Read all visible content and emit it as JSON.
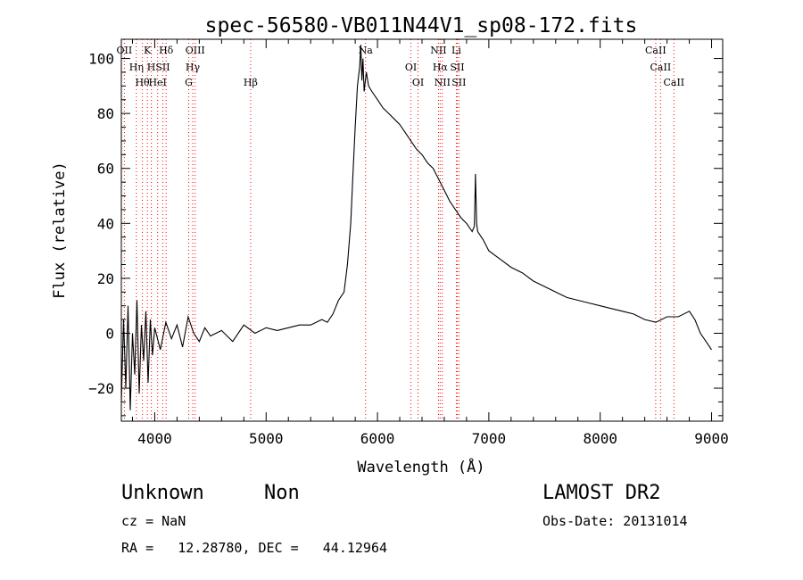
{
  "chart_data": {
    "type": "line",
    "title": "spec-56580-VB011N44V1_sp08-172.fits",
    "xlabel": "Wavelength (Å)",
    "ylabel": "Flux (relative)",
    "xlim": [
      3700,
      9100
    ],
    "ylim": [
      -32,
      107
    ],
    "x_ticks": [
      4000,
      5000,
      6000,
      7000,
      8000,
      9000
    ],
    "y_ticks": [
      -20,
      0,
      20,
      40,
      60,
      80,
      100
    ],
    "x_tick_labels": [
      "4000",
      "5000",
      "6000",
      "7000",
      "8000",
      "9000"
    ],
    "y_tick_labels": [
      "−20",
      "0",
      "20",
      "40",
      "60",
      "80",
      "100"
    ],
    "grid": false,
    "line_color": "#000000",
    "marker_line_color": "#ff0000",
    "series": [
      {
        "x": [
          3700,
          3720,
          3740,
          3760,
          3780,
          3800,
          3820,
          3840,
          3860,
          3880,
          3900,
          3920,
          3940,
          3960,
          3980,
          4000,
          4050,
          4100,
          4150,
          4200,
          4250,
          4300,
          4350,
          4400,
          4450,
          4500,
          4600,
          4700,
          4800,
          4900,
          5000,
          5100,
          5200,
          5300,
          5400,
          5500,
          5550,
          5600,
          5650,
          5700,
          5730,
          5760,
          5780,
          5800,
          5820,
          5840,
          5850,
          5860,
          5870,
          5880,
          5900,
          5920,
          5950,
          6000,
          6050,
          6100,
          6150,
          6200,
          6250,
          6300,
          6350,
          6400,
          6450,
          6500,
          6550,
          6600,
          6650,
          6700,
          6750,
          6800,
          6850,
          6870,
          6880,
          6890,
          6900,
          6950,
          7000,
          7100,
          7200,
          7300,
          7400,
          7500,
          7600,
          7700,
          7800,
          7900,
          8000,
          8100,
          8200,
          8300,
          8400,
          8500,
          8600,
          8700,
          8800,
          8850,
          8880,
          8900,
          8950,
          9000
        ],
        "y": [
          -25,
          5,
          -20,
          10,
          -28,
          0,
          -15,
          12,
          -22,
          3,
          -10,
          8,
          -18,
          5,
          -8,
          2,
          -6,
          4,
          -2,
          3,
          -5,
          6,
          0,
          -3,
          2,
          -1,
          1,
          -3,
          3,
          0,
          2,
          1,
          2,
          3,
          3,
          5,
          4,
          7,
          12,
          15,
          25,
          40,
          58,
          75,
          90,
          97,
          105,
          92,
          100,
          88,
          95,
          90,
          88,
          85,
          82,
          80,
          78,
          76,
          73,
          70,
          67,
          65,
          62,
          60,
          56,
          52,
          48,
          45,
          42,
          40,
          37,
          39,
          58,
          40,
          37,
          34,
          30,
          27,
          24,
          22,
          19,
          17,
          15,
          13,
          12,
          11,
          10,
          9,
          8,
          7,
          5,
          4,
          6,
          6,
          8,
          5,
          2,
          0,
          -3,
          -6
        ]
      }
    ],
    "spectral_lines": [
      {
        "label": "OII",
        "wavelength": 3727
      },
      {
        "label": "Hη",
        "wavelength": 3835
      },
      {
        "label": "Hθ",
        "wavelength": 3889
      },
      {
        "label": "K",
        "wavelength": 3934
      },
      {
        "label": "H",
        "wavelength": 3969
      },
      {
        "label": "HeI",
        "wavelength": 4026
      },
      {
        "label": "Hδ",
        "wavelength": 4102
      },
      {
        "label": "SII",
        "wavelength": 4072
      },
      {
        "label": "G",
        "wavelength": 4305
      },
      {
        "label": "OIII",
        "wavelength": 4363
      },
      {
        "label": "Hγ",
        "wavelength": 4341
      },
      {
        "label": "Hβ",
        "wavelength": 4861
      },
      {
        "label": "Na",
        "wavelength": 5893
      },
      {
        "label": "OI",
        "wavelength": 6300
      },
      {
        "label": "OI",
        "wavelength": 6364
      },
      {
        "label": "NII",
        "wavelength": 6548
      },
      {
        "label": "Hα",
        "wavelength": 6563
      },
      {
        "label": "NII",
        "wavelength": 6583
      },
      {
        "label": "Li",
        "wavelength": 6708
      },
      {
        "label": "SII",
        "wavelength": 6716
      },
      {
        "label": "SII",
        "wavelength": 6731
      },
      {
        "label": "CaII",
        "wavelength": 8498
      },
      {
        "label": "CaII",
        "wavelength": 8542
      },
      {
        "label": "CaII",
        "wavelength": 8662
      }
    ]
  },
  "info": {
    "classification": "Unknown",
    "subclass": "Non",
    "cz": "cz = NaN",
    "coords": "RA =   12.28780, DEC =   44.12964",
    "survey": "LAMOST DR2",
    "obs_date": "Obs-Date: 20131014"
  }
}
